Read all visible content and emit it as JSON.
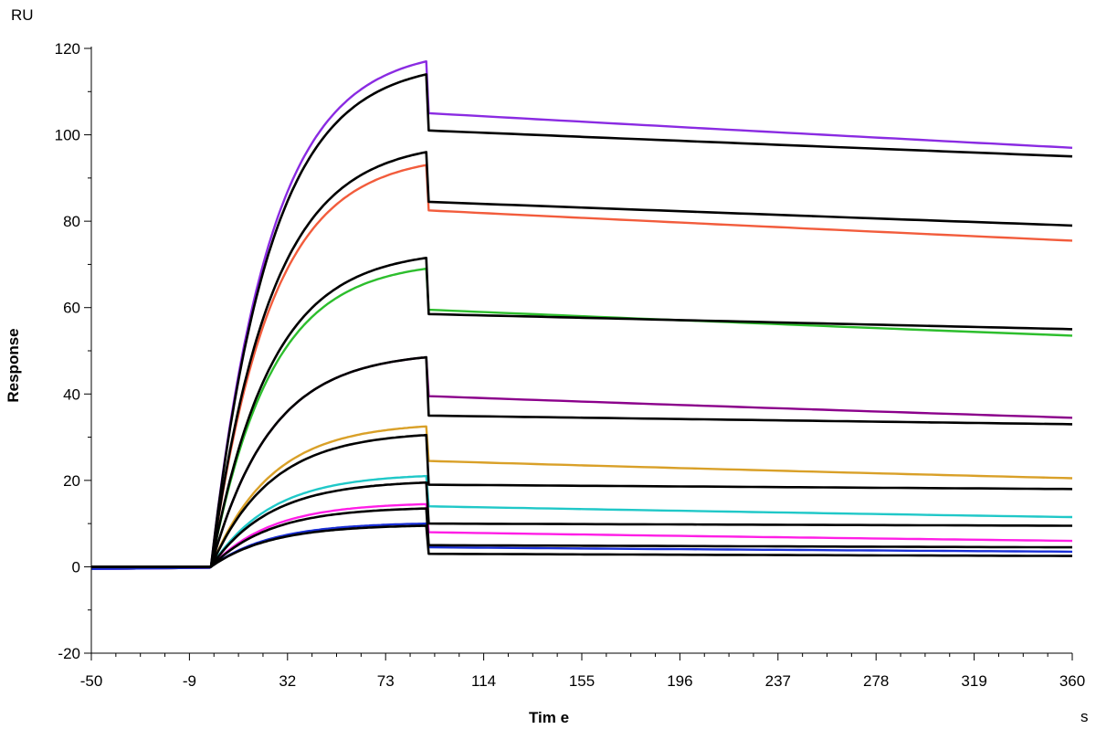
{
  "chart_data": {
    "type": "line",
    "title": "",
    "xlabel": "Tim e",
    "ylabel": "Response",
    "x_unit": "s",
    "y_unit": "RU",
    "xlim": [
      -50,
      360
    ],
    "ylim": [
      -20,
      120
    ],
    "x_ticks": [
      -50,
      -9,
      32,
      73,
      114,
      155,
      196,
      237,
      278,
      319,
      360
    ],
    "y_ticks": [
      -20,
      0,
      20,
      40,
      60,
      80,
      100,
      120
    ],
    "grid": false,
    "legend": "none",
    "baseline_start": -50,
    "association_start": 0,
    "dissociation_start": 90,
    "end_time": 360,
    "series": [
      {
        "color": "#8A2BE2",
        "style": "measured",
        "association_peak": 117,
        "dissociation_start_value": 105,
        "end_value": 97
      },
      {
        "color": "#F25C3C",
        "style": "measured",
        "association_peak": 93,
        "dissociation_start_value": 82.5,
        "end_value": 75.5
      },
      {
        "color": "#2DBE2D",
        "style": "measured",
        "association_peak": 69,
        "dissociation_start_value": 59.5,
        "end_value": 53.5
      },
      {
        "color": "#8B008B",
        "style": "measured",
        "association_peak": 48.5,
        "dissociation_start_value": 39.5,
        "end_value": 34.5
      },
      {
        "color": "#D9A028",
        "style": "measured",
        "association_peak": 32.5,
        "dissociation_start_value": 24.5,
        "end_value": 20.5
      },
      {
        "color": "#20C8C8",
        "style": "measured",
        "association_peak": 21,
        "dissociation_start_value": 14,
        "end_value": 11.5
      },
      {
        "color": "#FF1EE6",
        "style": "measured",
        "association_peak": 14.5,
        "dissociation_start_value": 8,
        "end_value": 6
      },
      {
        "color": "#1A2FD6",
        "style": "measured",
        "association_peak": 10,
        "dissociation_start_value": 4.5,
        "end_value": 3.5
      },
      {
        "color": "#000000",
        "style": "fit",
        "association_peak": 114,
        "dissociation_start_value": 101,
        "end_value": 95
      },
      {
        "color": "#000000",
        "style": "fit",
        "association_peak": 96,
        "dissociation_start_value": 84.5,
        "end_value": 79
      },
      {
        "color": "#000000",
        "style": "fit",
        "association_peak": 71.5,
        "dissociation_start_value": 58.5,
        "end_value": 55
      },
      {
        "color": "#000000",
        "style": "fit",
        "association_peak": 48.5,
        "dissociation_start_value": 35,
        "end_value": 33
      },
      {
        "color": "#000000",
        "style": "fit",
        "association_peak": 30.5,
        "dissociation_start_value": 19,
        "end_value": 18
      },
      {
        "color": "#000000",
        "style": "fit",
        "association_peak": 19.5,
        "dissociation_start_value": 10,
        "end_value": 9.5
      },
      {
        "color": "#000000",
        "style": "fit",
        "association_peak": 13.5,
        "dissociation_start_value": 5,
        "end_value": 4.5
      },
      {
        "color": "#000000",
        "style": "fit",
        "association_peak": 9.5,
        "dissociation_start_value": 3,
        "end_value": 2.5
      }
    ]
  }
}
